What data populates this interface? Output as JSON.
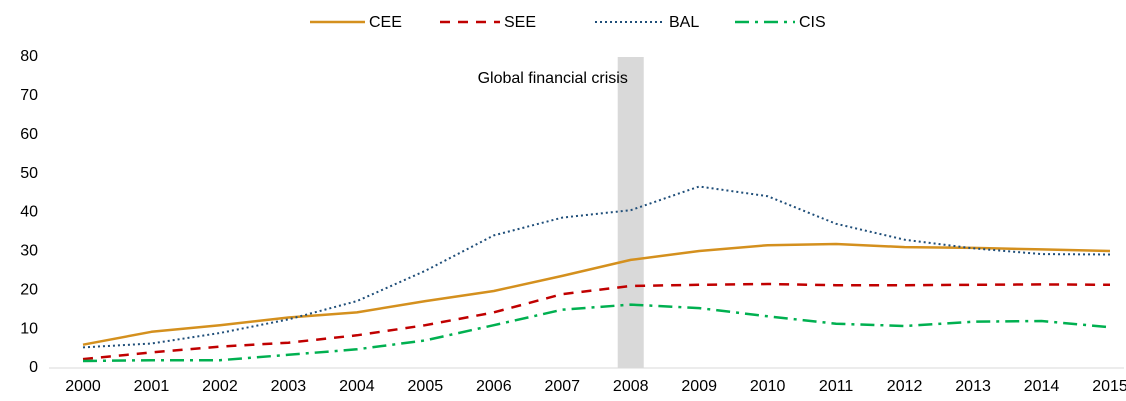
{
  "chart_data": {
    "type": "line",
    "categories": [
      "2000",
      "2001",
      "2002",
      "2003",
      "2004",
      "2005",
      "2006",
      "2007",
      "2008",
      "2009",
      "2010",
      "2011",
      "2012",
      "2013",
      "2014",
      "2015"
    ],
    "series": [
      {
        "name": "CEE",
        "color": "#d4901e",
        "dash": "solid",
        "values": [
          6,
          9.3,
          11,
          13,
          14.3,
          17.2,
          19.8,
          23.7,
          27.8,
          30.1,
          31.6,
          31.9,
          31.1,
          30.9,
          30.5,
          30.1
        ]
      },
      {
        "name": "SEE",
        "color": "#c00000",
        "dash": "dash",
        "values": [
          2.3,
          4,
          5.5,
          6.5,
          8.4,
          11,
          14.3,
          19,
          21.1,
          21.4,
          21.6,
          21.3,
          21.3,
          21.4,
          21.5,
          21.4
        ]
      },
      {
        "name": "BAL",
        "color": "#1f4e79",
        "dash": "dot",
        "values": [
          5.3,
          6.3,
          9,
          12.5,
          17.2,
          25,
          34.1,
          38.7,
          40.6,
          46.7,
          44.2,
          37.1,
          33,
          30.8,
          29.3,
          29.2
        ]
      },
      {
        "name": "CIS",
        "color": "#00b050",
        "dash": "dashdot",
        "values": [
          1.8,
          2,
          2,
          3.4,
          4.8,
          7.1,
          11,
          15,
          16.3,
          15.4,
          13.3,
          11.4,
          10.8,
          11.9,
          12.1,
          10.5
        ]
      }
    ],
    "annotation": {
      "text": "Global financial crisis",
      "category": "2008",
      "color": "#d9d9d9"
    },
    "ylim": [
      0,
      80
    ],
    "yticks": [
      0,
      10,
      20,
      30,
      40,
      50,
      60,
      70,
      80
    ],
    "grid": false,
    "legend": "top"
  }
}
